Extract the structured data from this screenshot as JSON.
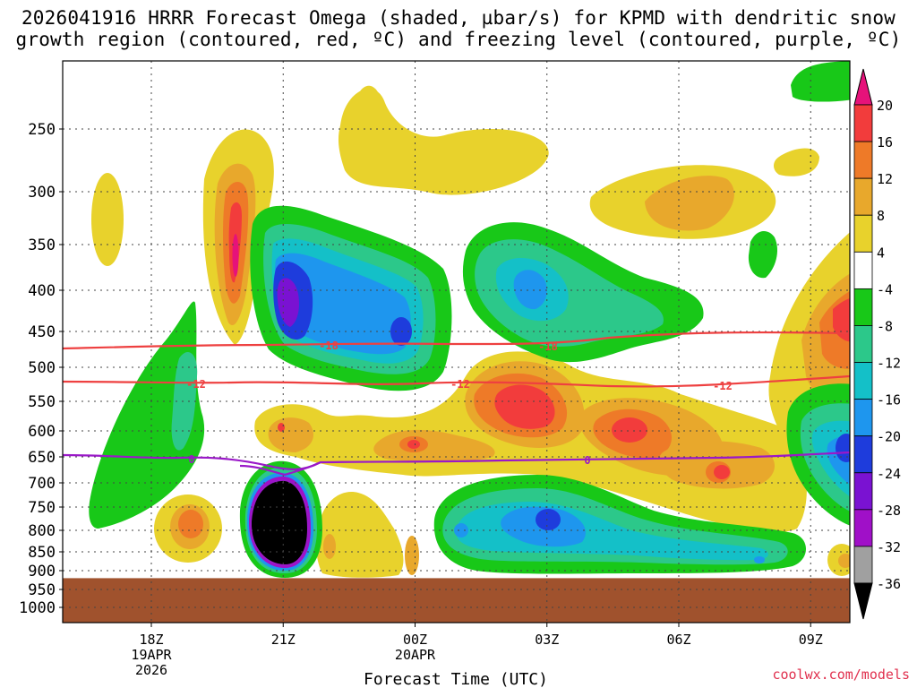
{
  "title": {
    "line1": "2026041916 HRRR Forecast Omega (shaded, µbar/s) for KPMD with dendritic snow",
    "line2": "growth region (contoured, red, ºC) and freezing level (contoured, purple, ºC)"
  },
  "credit": "coolwx.com/models",
  "chart_data": {
    "type": "time-height cross-section",
    "title": "2026041916 HRRR Forecast Omega (shaded, µbar/s) for KPMD with dendritic snow growth region (contoured, red, ºC) and freezing level (contoured, purple, ºC)",
    "xlabel": "Forecast Time (UTC)",
    "ylabel": "",
    "x_ticks": [
      {
        "label": "18Z",
        "sub1": "19APR",
        "sub2": "2026",
        "hour": 18
      },
      {
        "label": "21Z",
        "sub1": "",
        "sub2": "",
        "hour": 21
      },
      {
        "label": "00Z",
        "sub1": "20APR",
        "sub2": "",
        "hour": 24
      },
      {
        "label": "03Z",
        "sub1": "",
        "sub2": "",
        "hour": 27
      },
      {
        "label": "06Z",
        "sub1": "",
        "sub2": "",
        "hour": 30
      },
      {
        "label": "09Z",
        "sub1": "",
        "sub2": "",
        "hour": 33
      }
    ],
    "x_range_hours": [
      16,
      34
    ],
    "y_ticks": [
      250,
      300,
      350,
      400,
      450,
      500,
      550,
      600,
      650,
      700,
      750,
      800,
      850,
      900,
      950,
      1000
    ],
    "y_range_hPa": [
      200,
      1050
    ],
    "surface_level_hPa": 920,
    "colorbar": {
      "labels": [
        "20",
        "16",
        "12",
        "8",
        "4",
        "-4",
        "-8",
        "-12",
        "-16",
        "-20",
        "-24",
        "-28",
        "-32",
        "-36"
      ],
      "colors": [
        "#e6127a",
        "#f23c3c",
        "#ee7a28",
        "#e8a82c",
        "#e8d22c",
        "#ffffff",
        "#18c818",
        "#2cc88a",
        "#14c0c8",
        "#1e96ee",
        "#1e3cdc",
        "#7a12d2",
        "#a010c8",
        "#a0a0a0",
        "#000000"
      ]
    },
    "contours": [
      {
        "name": "dendritic -18C",
        "color": "#ee4040",
        "label": "-18",
        "level_hPa": 472
      },
      {
        "name": "dendritic -12C",
        "color": "#ee4040",
        "label": "-12",
        "level_hPa": 522
      },
      {
        "name": "freezing level 0C",
        "color": "#9a18c8",
        "label": "0",
        "level_hPa": 655
      }
    ],
    "regions": [
      {
        "kind": "upward",
        "value": -36,
        "center": [
          21,
          800
        ],
        "note": "strong upward motion, black core"
      },
      {
        "kind": "upward",
        "value": -24,
        "center": [
          21.1,
          400
        ]
      },
      {
        "kind": "upward",
        "value": -20,
        "center": [
          24,
          450
        ]
      },
      {
        "kind": "upward",
        "value": -20,
        "center": [
          27.1,
          780
        ]
      },
      {
        "kind": "upward",
        "value": -16,
        "center": [
          27.6,
          380
        ]
      },
      {
        "kind": "upward",
        "value": -20,
        "center": [
          34,
          620
        ]
      },
      {
        "kind": "downward",
        "value": 20,
        "center": [
          19.9,
          350
        ]
      },
      {
        "kind": "downward",
        "value": 16,
        "center": [
          26.9,
          560
        ]
      },
      {
        "kind": "downward",
        "value": 16,
        "center": [
          29.8,
          610
        ]
      },
      {
        "kind": "downward",
        "value": 12,
        "center": [
          30.6,
          330
        ]
      },
      {
        "kind": "downward",
        "value": 16,
        "center": [
          34,
          430
        ]
      },
      {
        "kind": "downward",
        "value": 12,
        "center": [
          18.8,
          800
        ]
      }
    ]
  }
}
